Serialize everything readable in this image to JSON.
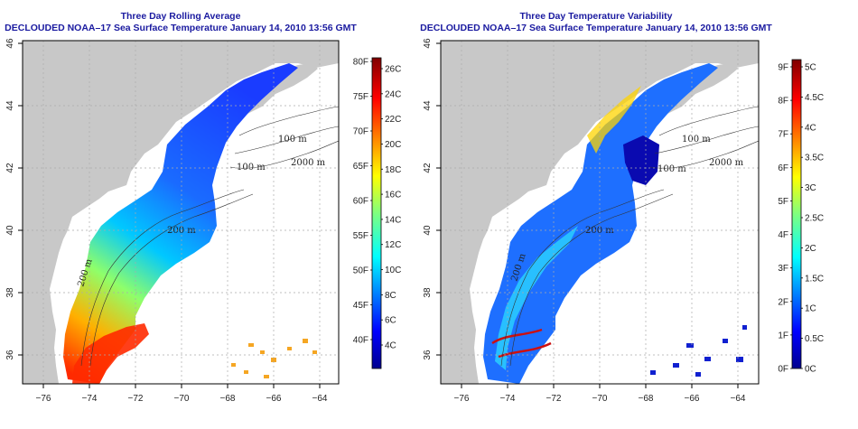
{
  "panels": [
    {
      "id": "average",
      "title_line1": "Three Day Rolling Average",
      "title_line2": "DECLOUDED NOAA–17 Sea Surface Temperature January 14, 2010 13:56 GMT",
      "colorbar": {
        "scale": "jet",
        "left_ticks": [
          "80F",
          "75F",
          "70F",
          "65F",
          "60F",
          "55F",
          "50F",
          "45F",
          "40F"
        ],
        "right_ticks": [
          "26C",
          "24C",
          "22C",
          "20C",
          "18C",
          "16C",
          "14C",
          "12C",
          "10C",
          "8C",
          "6C",
          "4C"
        ]
      },
      "isobath_labels": [
        "100 m",
        "100 m",
        "2000 m",
        "200 m",
        "200 m"
      ]
    },
    {
      "id": "variability",
      "title_line1": "Three Day Temperature Variability",
      "title_line2": "DECLOUDED NOAA–17 Sea Surface Temperature January 14, 2010 13:56 GMT",
      "colorbar": {
        "scale": "jet",
        "left_ticks": [
          "9F",
          "8F",
          "7F",
          "6F",
          "5F",
          "4F",
          "3F",
          "2F",
          "1F",
          "0F"
        ],
        "right_ticks": [
          "5C",
          "4.5C",
          "4C",
          "3.5C",
          "3C",
          "2.5C",
          "2C",
          "1.5C",
          "1C",
          "0.5C",
          "0C"
        ]
      },
      "isobath_labels": [
        "100 m",
        "100 m",
        "2000 m",
        "200 m",
        "200 m"
      ]
    }
  ],
  "axes": {
    "x_ticks": [
      "−76",
      "−74",
      "−72",
      "−70",
      "−68",
      "−66",
      "−64"
    ],
    "y_ticks": [
      "36",
      "38",
      "40",
      "42",
      "44",
      "46"
    ],
    "lon_range": [
      -77.5,
      -63
    ],
    "lat_range": [
      35,
      46
    ]
  },
  "colors": {
    "land": "#c8c8c8",
    "title": "#1a1aa0",
    "grid": "#aaaaaa"
  }
}
